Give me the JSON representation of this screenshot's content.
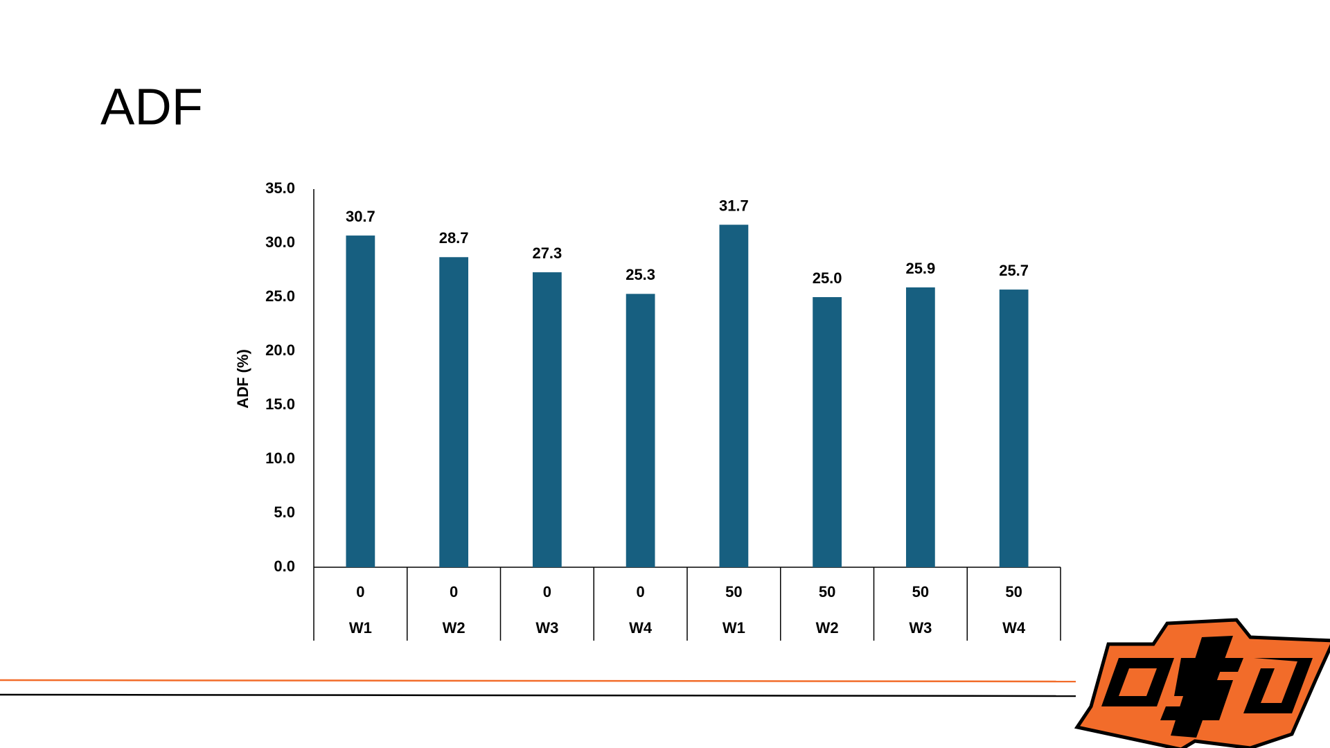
{
  "chart_data": {
    "type": "bar",
    "title": "ADF",
    "y_label": "ADF (%)",
    "categories": [
      [
        "0",
        "W1"
      ],
      [
        "0",
        "W2"
      ],
      [
        "0",
        "W3"
      ],
      [
        "0",
        "W4"
      ],
      [
        "50",
        "W1"
      ],
      [
        "50",
        "W2"
      ],
      [
        "50",
        "W3"
      ],
      [
        "50",
        "W4"
      ]
    ],
    "values": [
      30.7,
      28.7,
      27.3,
      25.3,
      31.7,
      25.0,
      25.9,
      25.7
    ],
    "value_labels": [
      "30.7",
      "28.7",
      "27.3",
      "25.3",
      "31.7",
      "25.0",
      "25.9",
      "25.7"
    ],
    "color": "#175f80",
    "ylim": [
      0,
      35
    ],
    "yticks": [
      {
        "value": 0,
        "label": "0.0"
      },
      {
        "value": 5,
        "label": "5.0"
      },
      {
        "value": 10,
        "label": "10.0"
      },
      {
        "value": 15,
        "label": "15.0"
      },
      {
        "value": 20,
        "label": "20.0"
      },
      {
        "value": 25,
        "label": "25.0"
      },
      {
        "value": 30,
        "label": "30.0"
      },
      {
        "value": 35,
        "label": "35.0"
      }
    ],
    "grid": false
  }
}
